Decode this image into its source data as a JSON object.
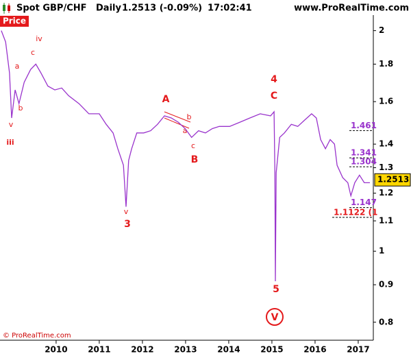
{
  "chart_data": {
    "type": "line",
    "title": "Spot GBP/CHF",
    "timeframe": "Daily",
    "quote": "1.2513 (-0.09%)",
    "time": "17:02:41",
    "source": "www.ProRealTime.com",
    "panel_label": "Price",
    "copyright": "© ProRealTime.com",
    "color": "#9933cc",
    "log_scale": true,
    "x": [
      2008.73,
      2008.83,
      2008.92,
      2008.97,
      2009.05,
      2009.14,
      2009.26,
      2009.41,
      2009.53,
      2009.65,
      2009.81,
      2009.97,
      2010.13,
      2010.29,
      2010.53,
      2010.76,
      2011.0,
      2011.16,
      2011.32,
      2011.43,
      2011.56,
      2011.62,
      2011.68,
      2011.75,
      2011.87,
      2012.03,
      2012.19,
      2012.35,
      2012.51,
      2012.67,
      2012.83,
      2012.99,
      2013.14,
      2013.3,
      2013.46,
      2013.62,
      2013.78,
      2014.02,
      2014.26,
      2014.49,
      2014.73,
      2014.97,
      2015.05,
      2015.07,
      2015.08,
      2015.1,
      2015.18,
      2015.29,
      2015.45,
      2015.6,
      2015.76,
      2015.92,
      2016.03,
      2016.13,
      2016.24,
      2016.35,
      2016.45,
      2016.51,
      2016.64,
      2016.76,
      2016.83,
      2016.92,
      2017.03,
      2017.14,
      2017.27
    ],
    "values": [
      2.0,
      1.93,
      1.75,
      1.52,
      1.66,
      1.59,
      1.7,
      1.77,
      1.8,
      1.75,
      1.68,
      1.66,
      1.67,
      1.63,
      1.59,
      1.54,
      1.54,
      1.49,
      1.45,
      1.38,
      1.31,
      1.15,
      1.33,
      1.38,
      1.45,
      1.45,
      1.46,
      1.49,
      1.53,
      1.52,
      1.5,
      1.47,
      1.43,
      1.46,
      1.45,
      1.47,
      1.48,
      1.48,
      1.5,
      1.52,
      1.54,
      1.53,
      1.55,
      1.28,
      0.91,
      1.28,
      1.43,
      1.45,
      1.49,
      1.48,
      1.51,
      1.54,
      1.52,
      1.42,
      1.38,
      1.42,
      1.4,
      1.31,
      1.26,
      1.24,
      1.19,
      1.24,
      1.27,
      1.24,
      1.24
    ],
    "xlim": [
      2008.7,
      2017.35
    ],
    "xticks": [
      2010,
      2011,
      2012,
      2013,
      2014,
      2015,
      2016,
      2017
    ],
    "ylim": [
      0.756,
      2.1
    ],
    "yticks": [
      0.8,
      0.9,
      1,
      1.1,
      1.2,
      1.3,
      1.4,
      1.6,
      1.8,
      2
    ],
    "current_price": 1.2513,
    "levels": [
      {
        "value": 1.461,
        "label": "1.461",
        "color": "#9933cc"
      },
      {
        "value": 1.341,
        "label": "1.341",
        "color": "#9933cc"
      },
      {
        "value": 1.304,
        "label": "1.304",
        "color": "#9933cc"
      },
      {
        "value": 1.147,
        "label": "1.147",
        "color": "#9933cc"
      },
      {
        "value": 1.1122,
        "label": "1.1122 (1",
        "color": "#e41a1c"
      }
    ],
    "annotations": [
      "iv",
      "a",
      "c",
      "b",
      "v",
      "iii",
      "v",
      "3",
      "A",
      "b",
      "a",
      "c",
      "B",
      "4",
      "C",
      "5",
      "V"
    ]
  }
}
